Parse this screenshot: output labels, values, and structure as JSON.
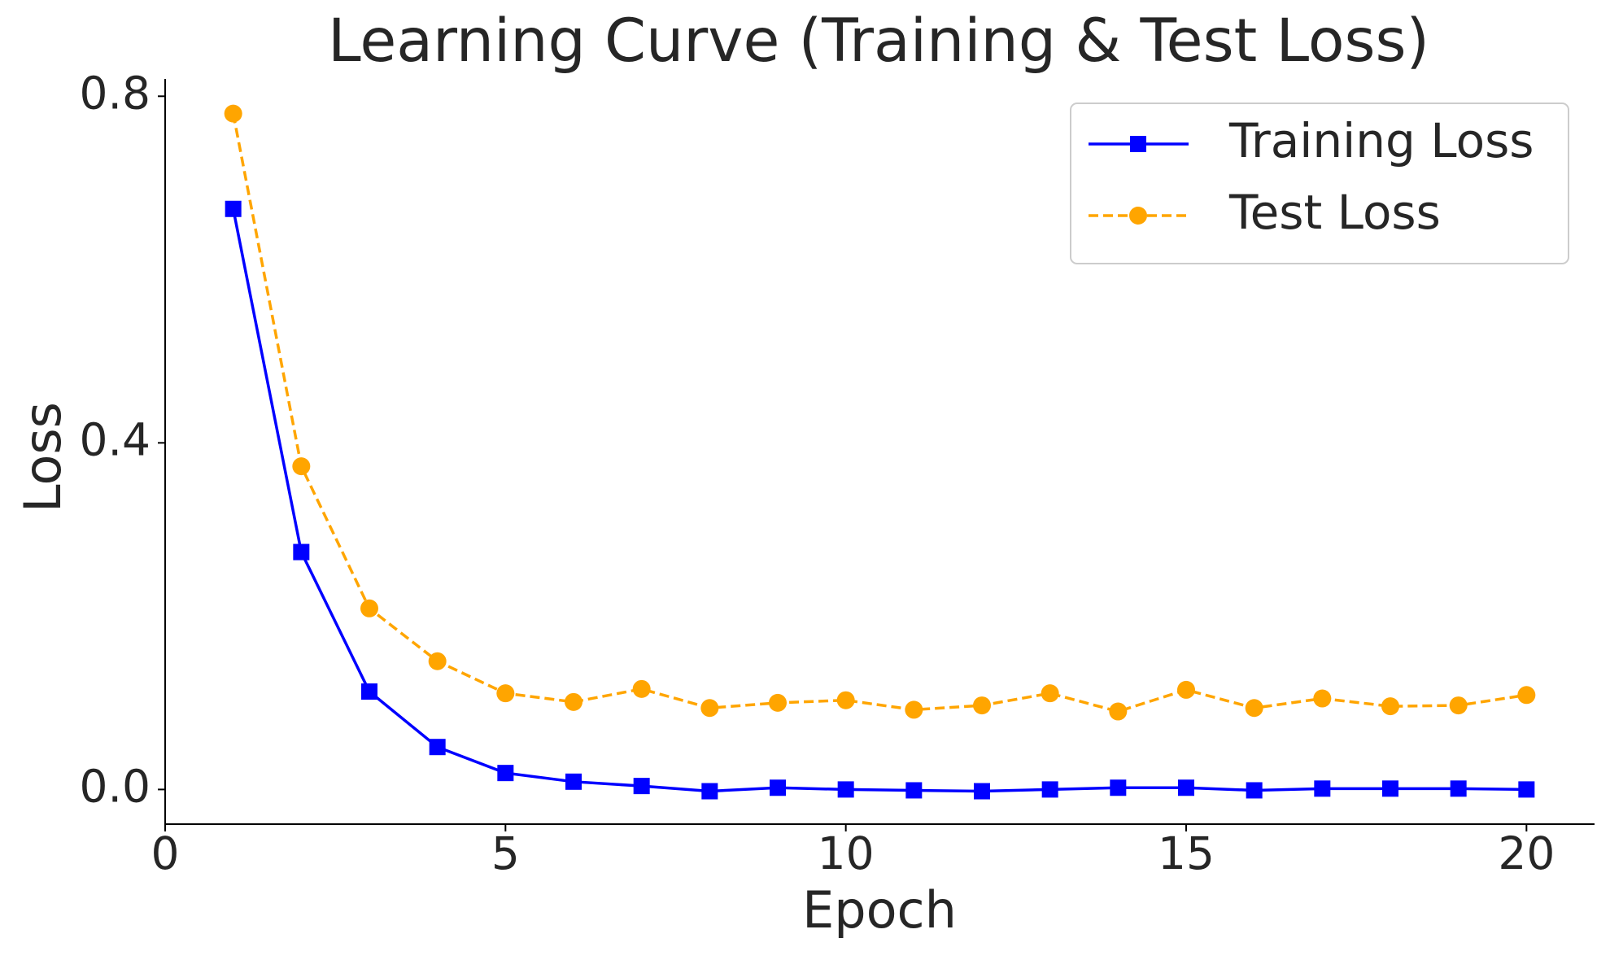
{
  "chart_data": {
    "type": "line",
    "title": "Learning Curve (Training & Test Loss)",
    "x_label": "Epoch",
    "y_label": "Loss",
    "x": [
      1,
      2,
      3,
      4,
      5,
      6,
      7,
      8,
      9,
      10,
      11,
      12,
      13,
      14,
      15,
      16,
      17,
      18,
      19,
      20
    ],
    "series": [
      {
        "name": "Training Loss",
        "color": "#0000ff",
        "marker": "square",
        "dash": "solid",
        "values": [
          0.67,
          0.274,
          0.113,
          0.049,
          0.019,
          0.009,
          0.004,
          -0.002,
          0.002,
          0.0,
          -0.001,
          -0.002,
          0.0,
          0.002,
          0.002,
          -0.001,
          0.001,
          0.001,
          0.001,
          0.0
        ]
      },
      {
        "name": "Test Loss",
        "color": "#ffa500",
        "marker": "circle",
        "dash": "dashed",
        "values": [
          0.78,
          0.373,
          0.209,
          0.148,
          0.111,
          0.101,
          0.116,
          0.094,
          0.1,
          0.103,
          0.092,
          0.097,
          0.111,
          0.09,
          0.115,
          0.094,
          0.105,
          0.096,
          0.097,
          0.109
        ]
      }
    ],
    "xlim": [
      0,
      21
    ],
    "xticks": [
      0,
      5,
      10,
      15,
      20
    ],
    "ylim": [
      -0.04,
      0.82
    ],
    "yticks": [
      {
        "value": 0,
        "label": "0.0"
      },
      0.4,
      0.8
    ],
    "grid": false,
    "legend": "upper right"
  }
}
